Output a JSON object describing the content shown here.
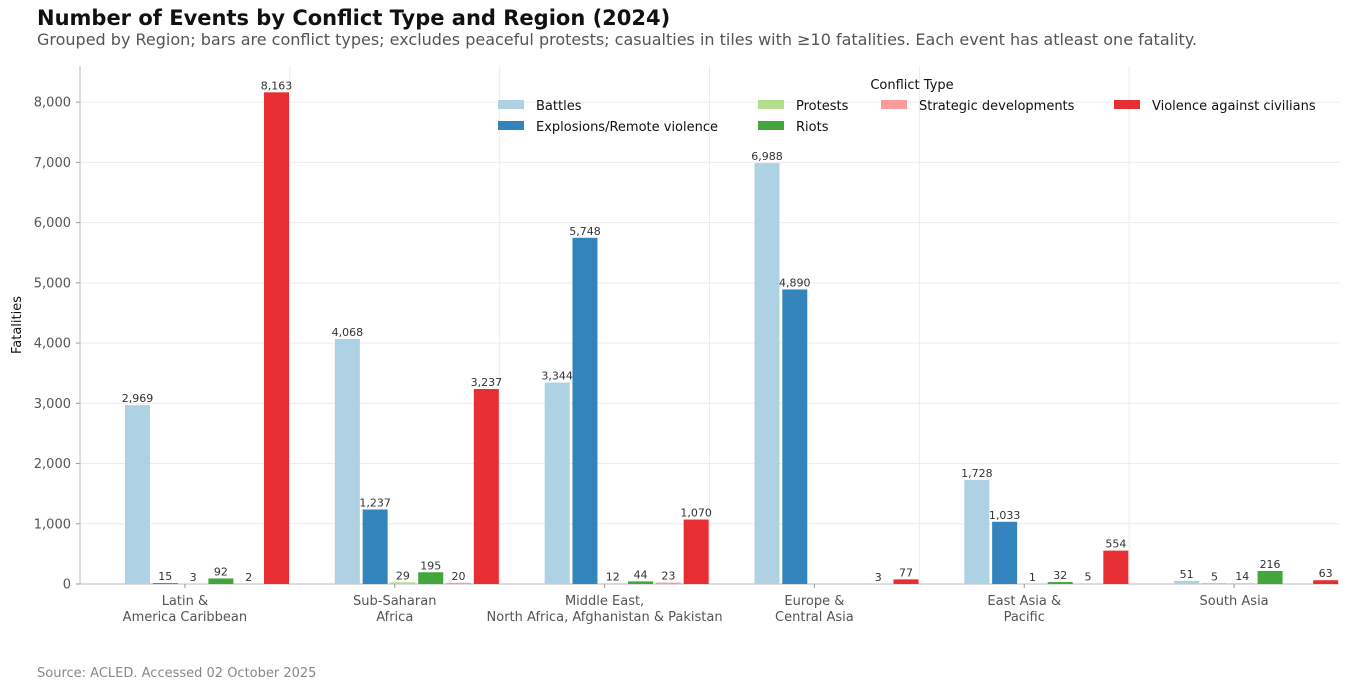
{
  "chart_data": {
    "type": "bar",
    "title": "Number of Events by Conflict Type and Region (2024)",
    "subtitle": "Grouped by Region; bars are conflict types; excludes peaceful protests; casualties in tiles with ≥10 fatalities. Each event has atleast one fatality.",
    "xlabel": "",
    "ylabel": "Fatalities",
    "ylim": [
      0,
      8600
    ],
    "yticks": [
      0,
      1000,
      2000,
      3000,
      4000,
      5000,
      6000,
      7000,
      8000
    ],
    "ytick_labels": [
      "0",
      "1,000",
      "2,000",
      "3,000",
      "4,000",
      "5,000",
      "6,000",
      "7,000",
      "8,000"
    ],
    "grid": true,
    "legend_title": "Conflict Type",
    "legend_position": "top-right",
    "categories": [
      [
        "Latin &",
        "America Caribbean"
      ],
      [
        "Sub-Saharan",
        "Africa"
      ],
      [
        "Middle East,",
        "North Africa, Afghanistan & Pakistan"
      ],
      [
        "Europe &",
        "Central Asia"
      ],
      [
        "East Asia &",
        "Pacific"
      ],
      [
        "South Asia"
      ]
    ],
    "series": [
      {
        "name": "Battles",
        "color": "#afd1e4",
        "values": [
          2969,
          4068,
          3344,
          6988,
          1728,
          51
        ],
        "labels": [
          "2,969",
          "4,068",
          "3,344",
          "6,988",
          "1,728",
          "51"
        ]
      },
      {
        "name": "Explosions/Remote violence",
        "color": "#3384bd",
        "values": [
          15,
          1237,
          5748,
          4890,
          1033,
          5
        ],
        "labels": [
          "15",
          "1,237",
          "5,748",
          "4,890",
          "1,033",
          "5"
        ]
      },
      {
        "name": "Protests",
        "color": "#b3df8d",
        "values": [
          3,
          29,
          12,
          null,
          1,
          14
        ],
        "labels": [
          "3",
          "29",
          "12",
          null,
          "1",
          "14"
        ]
      },
      {
        "name": "Riots",
        "color": "#42a63c",
        "values": [
          92,
          195,
          44,
          null,
          32,
          216
        ],
        "labels": [
          "92",
          "195",
          "44",
          null,
          "32",
          "216"
        ]
      },
      {
        "name": "Strategic developments",
        "color": "#f99b9a",
        "values": [
          2,
          20,
          23,
          3,
          5,
          null
        ],
        "labels": [
          "2",
          "20",
          "23",
          "3",
          "5",
          null
        ]
      },
      {
        "name": "Violence against civilians",
        "color": "#e62e33",
        "values": [
          8163,
          3237,
          1070,
          77,
          554,
          63
        ],
        "labels": [
          "8,163",
          "3,237",
          "1,070",
          "77",
          "554",
          "63"
        ]
      }
    ],
    "source": "Source: ACLED. Accessed 02 October 2025"
  }
}
